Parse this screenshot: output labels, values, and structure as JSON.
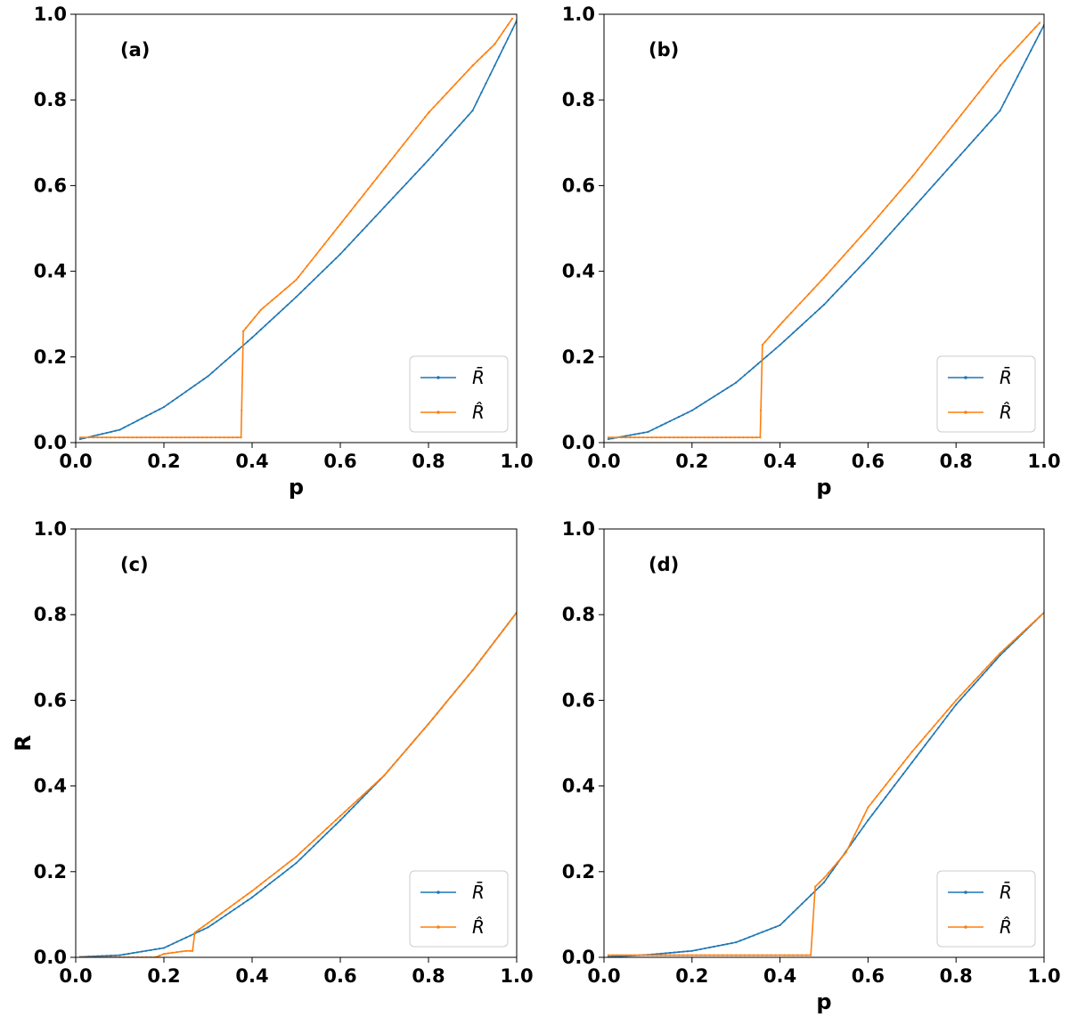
{
  "colors": {
    "bar": "#1f77b4",
    "hat": "#ff7f0e",
    "axis": "#000000"
  },
  "legend": {
    "bar": "R̄",
    "hat": "R̂",
    "placement": "lower-right"
  },
  "chart_data": [
    {
      "id": "a",
      "type": "line",
      "panel_label": "(a)",
      "xlabel": "p",
      "ylabel": "",
      "xlim": [
        0,
        1
      ],
      "ylim": [
        0,
        1
      ],
      "xticks": [
        "0.0",
        "0.2",
        "0.4",
        "0.6",
        "0.8",
        "1.0"
      ],
      "yticks": [
        "0.0",
        "0.2",
        "0.4",
        "0.6",
        "0.8",
        "1.0"
      ],
      "bar_knots": [
        [
          0.01,
          0.008
        ],
        [
          0.1,
          0.03
        ],
        [
          0.2,
          0.083
        ],
        [
          0.3,
          0.155
        ],
        [
          0.4,
          0.245
        ],
        [
          0.5,
          0.34
        ],
        [
          0.6,
          0.44
        ],
        [
          0.7,
          0.55
        ],
        [
          0.8,
          0.66
        ],
        [
          0.9,
          0.775
        ],
        [
          1.0,
          0.985
        ]
      ],
      "hat_knots": [
        [
          0.01,
          0.012
        ],
        [
          0.375,
          0.012
        ],
        [
          0.38,
          0.26
        ],
        [
          0.42,
          0.31
        ],
        [
          0.5,
          0.38
        ],
        [
          0.6,
          0.51
        ],
        [
          0.7,
          0.64
        ],
        [
          0.8,
          0.77
        ],
        [
          0.9,
          0.88
        ],
        [
          0.95,
          0.93
        ],
        [
          0.99,
          0.99
        ]
      ],
      "series": [
        {
          "key": "bar",
          "name": "R̄"
        },
        {
          "key": "hat",
          "name": "R̂"
        }
      ]
    },
    {
      "id": "b",
      "type": "line",
      "panel_label": "(b)",
      "xlabel": "p",
      "ylabel": "",
      "xlim": [
        0,
        1
      ],
      "ylim": [
        0,
        1
      ],
      "xticks": [
        "0.0",
        "0.2",
        "0.4",
        "0.6",
        "0.8",
        "1.0"
      ],
      "yticks": [
        "0.0",
        "0.2",
        "0.4",
        "0.6",
        "0.8",
        "1.0"
      ],
      "bar_knots": [
        [
          0.01,
          0.008
        ],
        [
          0.1,
          0.025
        ],
        [
          0.2,
          0.075
        ],
        [
          0.3,
          0.14
        ],
        [
          0.4,
          0.228
        ],
        [
          0.5,
          0.322
        ],
        [
          0.6,
          0.43
        ],
        [
          0.7,
          0.545
        ],
        [
          0.8,
          0.66
        ],
        [
          0.9,
          0.775
        ],
        [
          1.0,
          0.975
        ]
      ],
      "hat_knots": [
        [
          0.01,
          0.012
        ],
        [
          0.355,
          0.012
        ],
        [
          0.36,
          0.228
        ],
        [
          0.4,
          0.275
        ],
        [
          0.5,
          0.385
        ],
        [
          0.6,
          0.5
        ],
        [
          0.7,
          0.62
        ],
        [
          0.8,
          0.75
        ],
        [
          0.9,
          0.88
        ],
        [
          0.99,
          0.98
        ]
      ],
      "series": [
        {
          "key": "bar",
          "name": "R̄"
        },
        {
          "key": "hat",
          "name": "R̂"
        }
      ]
    },
    {
      "id": "c",
      "type": "line",
      "panel_label": "(c)",
      "xlabel": "",
      "ylabel": "R",
      "xlim": [
        0,
        1
      ],
      "ylim": [
        0,
        1
      ],
      "xticks": [
        "0.0",
        "0.2",
        "0.4",
        "0.6",
        "0.8",
        "1.0"
      ],
      "yticks": [
        "0.0",
        "0.2",
        "0.4",
        "0.6",
        "0.8",
        "1.0"
      ],
      "bar_knots": [
        [
          0.01,
          0.001
        ],
        [
          0.1,
          0.005
        ],
        [
          0.2,
          0.022
        ],
        [
          0.3,
          0.07
        ],
        [
          0.4,
          0.14
        ],
        [
          0.5,
          0.22
        ],
        [
          0.6,
          0.32
        ],
        [
          0.7,
          0.425
        ],
        [
          0.8,
          0.545
        ],
        [
          0.9,
          0.67
        ],
        [
          1.0,
          0.805
        ]
      ],
      "hat_knots": [
        [
          0.01,
          0.0
        ],
        [
          0.18,
          0.0
        ],
        [
          0.2,
          0.008
        ],
        [
          0.25,
          0.015
        ],
        [
          0.265,
          0.015
        ],
        [
          0.27,
          0.058
        ],
        [
          0.3,
          0.08
        ],
        [
          0.4,
          0.155
        ],
        [
          0.5,
          0.235
        ],
        [
          0.6,
          0.33
        ],
        [
          0.7,
          0.425
        ],
        [
          0.8,
          0.545
        ],
        [
          0.9,
          0.67
        ],
        [
          1.0,
          0.805
        ]
      ],
      "series": [
        {
          "key": "bar",
          "name": "R̄"
        },
        {
          "key": "hat",
          "name": "R̂"
        }
      ]
    },
    {
      "id": "d",
      "type": "line",
      "panel_label": "(d)",
      "xlabel": "p",
      "ylabel": "",
      "xlim": [
        0,
        1
      ],
      "ylim": [
        0,
        1
      ],
      "xticks": [
        "0.0",
        "0.2",
        "0.4",
        "0.6",
        "0.8",
        "1.0"
      ],
      "yticks": [
        "0.0",
        "0.2",
        "0.4",
        "0.6",
        "0.8",
        "1.0"
      ],
      "bar_knots": [
        [
          0.01,
          0.001
        ],
        [
          0.1,
          0.006
        ],
        [
          0.2,
          0.015
        ],
        [
          0.3,
          0.035
        ],
        [
          0.4,
          0.075
        ],
        [
          0.5,
          0.175
        ],
        [
          0.6,
          0.32
        ],
        [
          0.7,
          0.455
        ],
        [
          0.8,
          0.59
        ],
        [
          0.9,
          0.705
        ],
        [
          1.0,
          0.805
        ]
      ],
      "hat_knots": [
        [
          0.01,
          0.005
        ],
        [
          0.47,
          0.005
        ],
        [
          0.48,
          0.165
        ],
        [
          0.5,
          0.185
        ],
        [
          0.55,
          0.245
        ],
        [
          0.6,
          0.35
        ],
        [
          0.7,
          0.48
        ],
        [
          0.8,
          0.6
        ],
        [
          0.9,
          0.71
        ],
        [
          1.0,
          0.805
        ]
      ],
      "series": [
        {
          "key": "bar",
          "name": "R̄"
        },
        {
          "key": "hat",
          "name": "R̂"
        }
      ]
    }
  ]
}
